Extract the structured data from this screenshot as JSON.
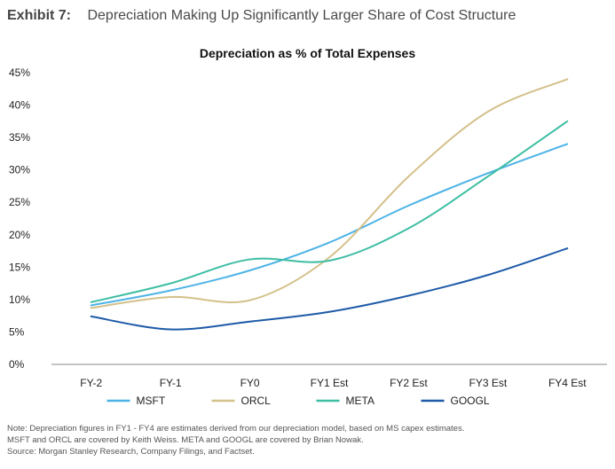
{
  "exhibit": {
    "label": "Exhibit 7:",
    "title": "Depreciation Making Up Significantly Larger Share of Cost Structure"
  },
  "chart_data": {
    "type": "line",
    "title": "Depreciation as % of Total Expenses",
    "xlabel": "",
    "ylabel": "",
    "categories": [
      "FY-2",
      "FY-1",
      "FY0",
      "FY1 Est",
      "FY2 Est",
      "FY3 Est",
      "FY4 Est"
    ],
    "y_ticks": [
      "0%",
      "5%",
      "10%",
      "15%",
      "20%",
      "25%",
      "30%",
      "35%",
      "40%",
      "45%"
    ],
    "ylim": [
      0,
      45
    ],
    "grid": false,
    "legend_position": "bottom",
    "series": [
      {
        "name": "MSFT",
        "color": "#4db3e6",
        "values": [
          9.1,
          11.4,
          14.5,
          18.8,
          24.5,
          29.5,
          34.0
        ]
      },
      {
        "name": "ORCL",
        "color": "#d4c08a",
        "values": [
          8.7,
          10.4,
          9.9,
          16.5,
          29.0,
          39.0,
          44.0
        ]
      },
      {
        "name": "META",
        "color": "#3dbea3",
        "values": [
          9.6,
          12.5,
          16.2,
          16.0,
          21.0,
          29.0,
          37.5
        ]
      },
      {
        "name": "GOOGL",
        "color": "#1e5aa8",
        "values": [
          7.4,
          5.4,
          6.6,
          8.1,
          10.6,
          13.8,
          17.9
        ]
      }
    ]
  },
  "notes": [
    "Note: Depreciation figures in FY1 - FY4 are estimates derived from our depreciation model, based on MS capex estimates.",
    "MSFT and ORCL are covered by Keith Weiss. META and GOOGL are covered by Brian Nowak.",
    "Source: Morgan Stanley Research, Company Filings, and Factset."
  ]
}
